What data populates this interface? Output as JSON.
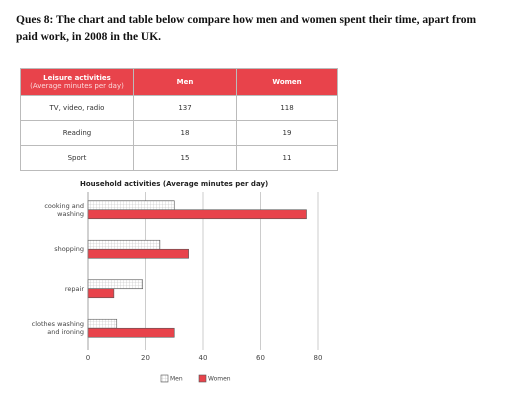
{
  "question": "Ques 8: The chart and table below compare how men and women spent their time, apart from paid work, in 2008 in the UK.",
  "table": {
    "headers": [
      "Leisure activities",
      "Men",
      "Women"
    ],
    "header_note": "(Average minutes per day)",
    "rows": [
      [
        "TV, video, radio",
        137,
        118
      ],
      [
        "Reading",
        18,
        19
      ],
      [
        "Sport",
        15,
        11
      ]
    ]
  },
  "chart_data": {
    "type": "hbar",
    "title": "Household activities (Average minutes per day)",
    "categories": [
      "cooking and washing",
      "shopping",
      "repair",
      "clothes washing and ironing"
    ],
    "series": [
      {
        "name": "Men",
        "color": "#ffffff",
        "values": [
          30,
          25,
          19,
          10
        ]
      },
      {
        "name": "Women",
        "color": "#e8434b",
        "values": [
          76,
          35,
          9,
          30
        ]
      }
    ],
    "xlim": [
      0,
      80
    ],
    "xticks": [
      0,
      20,
      40,
      60,
      80
    ],
    "grid": true,
    "legend": "bottom"
  }
}
